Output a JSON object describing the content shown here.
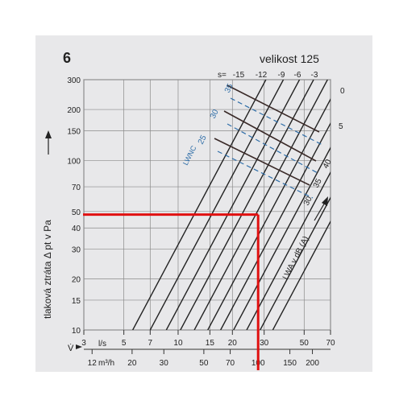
{
  "chart_data": {
    "type": "line",
    "figure_number": "6",
    "title": "velikost 125",
    "ylabel": "tlaková ztráta Δ pt v Pa",
    "y_axis": {
      "scale": "log",
      "range": [
        10,
        300
      ],
      "ticks": [
        10,
        15,
        20,
        30,
        40,
        50,
        70,
        100,
        150,
        200,
        300
      ]
    },
    "x_axis_flow": {
      "symbol": "V̇",
      "unit_ls": "l/s",
      "unit_m3h": "m³/h",
      "scale": "log",
      "range_ls": [
        3,
        70
      ],
      "ticks_ls": [
        3,
        5,
        7,
        10,
        15,
        20,
        30,
        50,
        70
      ],
      "ticks_ls_labels": [
        "3",
        "5",
        "7",
        "10",
        "15",
        "20",
        "30",
        "50",
        "70"
      ],
      "ticks_m3h": [
        12,
        20,
        30,
        50,
        70,
        100,
        150,
        200
      ],
      "ticks_m3h_labels": [
        "12",
        "20",
        "30",
        "50",
        "70",
        "100",
        "150",
        "200"
      ]
    },
    "damper_setting_lines": {
      "prefix": "s=",
      "labels": [
        "-15",
        "-12",
        "-9",
        "-6",
        "-3",
        "0",
        "5"
      ],
      "values": [
        -15,
        -12,
        -9,
        -6,
        -3,
        0,
        5
      ]
    },
    "sound_power_lines": {
      "label": "LWA v dB (A)",
      "labels": [
        "30",
        "35",
        "40"
      ],
      "values": [
        30,
        35,
        40
      ]
    },
    "sound_power_duct_lines": {
      "label": "LWNC",
      "labels": [
        "25",
        "30",
        "35"
      ],
      "values": [
        25,
        30,
        35
      ]
    },
    "reading": {
      "pressure_pa": 48,
      "flow_m3h": 100
    },
    "colors": {
      "background": "#e8e8ea",
      "grid": "#8a8a8a",
      "lines": "#222222",
      "duct_lines": "#2f6ea8",
      "reading": "#e01010"
    }
  }
}
